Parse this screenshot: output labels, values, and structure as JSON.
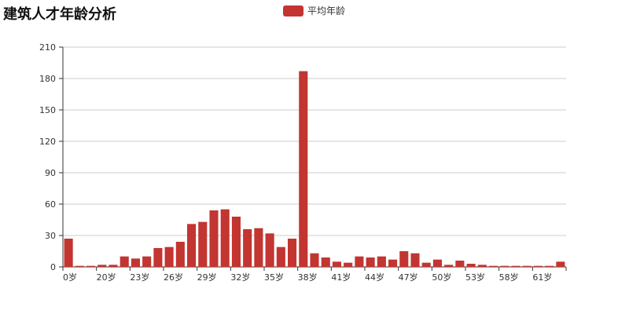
{
  "chart_data": {
    "type": "bar",
    "title": "建筑人才年龄分析",
    "legend": {
      "position": "top-center",
      "entries": [
        "平均年龄"
      ]
    },
    "series": [
      {
        "name": "平均年龄",
        "color": "#c23531",
        "values": [
          27,
          1,
          1,
          2,
          2,
          10,
          8,
          10,
          18,
          19,
          24,
          41,
          43,
          54,
          55,
          48,
          36,
          37,
          32,
          19,
          27,
          187,
          13,
          9,
          5,
          4,
          10,
          9,
          10,
          7,
          15,
          13,
          4,
          7,
          2,
          6,
          3,
          2,
          1,
          1,
          1,
          1,
          1,
          1,
          5
        ]
      }
    ],
    "xaxis": {
      "labels": [
        "0岁",
        "20岁",
        "23岁",
        "26岁",
        "29岁",
        "32岁",
        "35岁",
        "38岁",
        "41岁",
        "44岁",
        "47岁",
        "50岁",
        "53岁",
        "58岁",
        "61岁"
      ]
    },
    "yaxis": {
      "min": 0,
      "max": 210,
      "ticks": [
        0,
        30,
        60,
        90,
        120,
        150,
        180,
        210
      ]
    },
    "grid": true
  }
}
